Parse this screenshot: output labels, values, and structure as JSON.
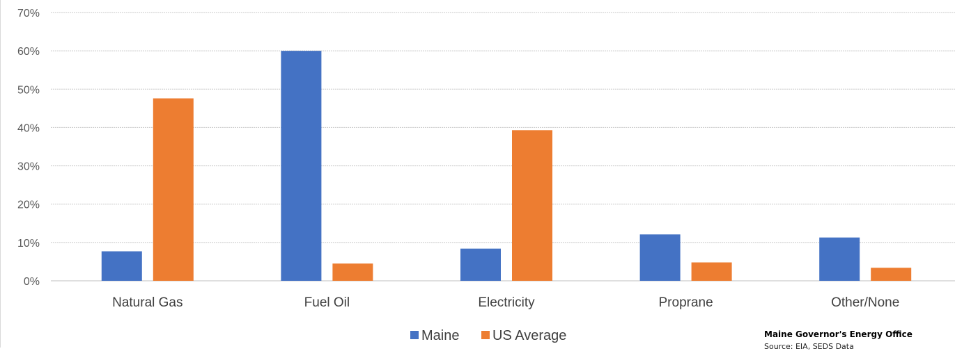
{
  "chart_data": {
    "type": "bar",
    "title": "",
    "xlabel": "",
    "ylabel": "",
    "categories": [
      "Natural Gas",
      "Fuel Oil",
      "Electricity",
      "Proprane",
      "Other/None"
    ],
    "series": [
      {
        "name": "Maine",
        "color": "#4472c4",
        "values": [
          7.7,
          60.0,
          8.4,
          12.1,
          11.3
        ]
      },
      {
        "name": "US Average",
        "color": "#ed7d31",
        "values": [
          47.6,
          4.5,
          39.3,
          4.8,
          3.4
        ]
      }
    ],
    "ylim": [
      0,
      70
    ],
    "yticks": [
      "0%",
      "10%",
      "20%",
      "30%",
      "40%",
      "50%",
      "60%",
      "70%"
    ],
    "grid": true,
    "legend_position": "bottom"
  },
  "credit": {
    "org": "Maine Governor's Energy Office",
    "source": "Source: EIA, SEDS Data"
  }
}
